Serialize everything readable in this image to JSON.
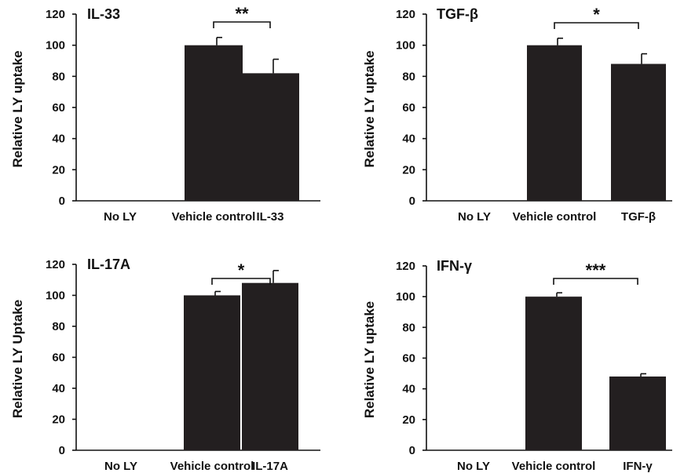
{
  "figure": {
    "bar_color": "#231f20",
    "axis_color": "#111111"
  },
  "chart_data": [
    {
      "type": "bar",
      "title": "IL-33",
      "ylabel": "Relative LY uptake",
      "xlabel": "",
      "categories": [
        "No LY",
        "Vehicle control",
        "IL-33"
      ],
      "values": [
        0,
        100,
        82
      ],
      "error": [
        0,
        5,
        9
      ],
      "ylim": [
        0,
        120
      ],
      "yticks": [
        "0",
        "20",
        "40",
        "60",
        "80",
        "100",
        "120"
      ],
      "significance": {
        "from": 1,
        "to": 2,
        "label": "**"
      }
    },
    {
      "type": "bar",
      "title": "TGF-β",
      "ylabel": "Relative LY uptake",
      "xlabel": "",
      "categories": [
        "No LY",
        "Vehicle control",
        "TGF-β"
      ],
      "values": [
        0,
        100,
        88
      ],
      "error": [
        0,
        4.5,
        6.5
      ],
      "ylim": [
        0,
        120
      ],
      "yticks": [
        "0",
        "20",
        "40",
        "60",
        "80",
        "100",
        "120"
      ],
      "significance": {
        "from": 1,
        "to": 2,
        "label": "*"
      }
    },
    {
      "type": "bar",
      "title": "IL-17A",
      "ylabel": "Relative LY Uptake",
      "xlabel": "",
      "categories": [
        "No LY",
        "Vehicle control",
        "IL-17A"
      ],
      "values": [
        0,
        100,
        108
      ],
      "error": [
        0,
        2.5,
        8
      ],
      "ylim": [
        0,
        120
      ],
      "yticks": [
        "0",
        "20",
        "40",
        "60",
        "80",
        "100",
        "120"
      ],
      "significance": {
        "from": 1,
        "to": 2,
        "label": "*"
      }
    },
    {
      "type": "bar",
      "title": "IFN-γ",
      "ylabel": "Relative LY uptake",
      "xlabel": "",
      "categories": [
        "No LY",
        "Vehicle control",
        "IFN-γ"
      ],
      "values": [
        0,
        100,
        48
      ],
      "error": [
        0,
        2.5,
        1.8
      ],
      "ylim": [
        0,
        120
      ],
      "yticks": [
        "0",
        "20",
        "40",
        "60",
        "80",
        "100",
        "120"
      ],
      "significance": {
        "from": 1,
        "to": 2,
        "label": "***"
      }
    }
  ]
}
